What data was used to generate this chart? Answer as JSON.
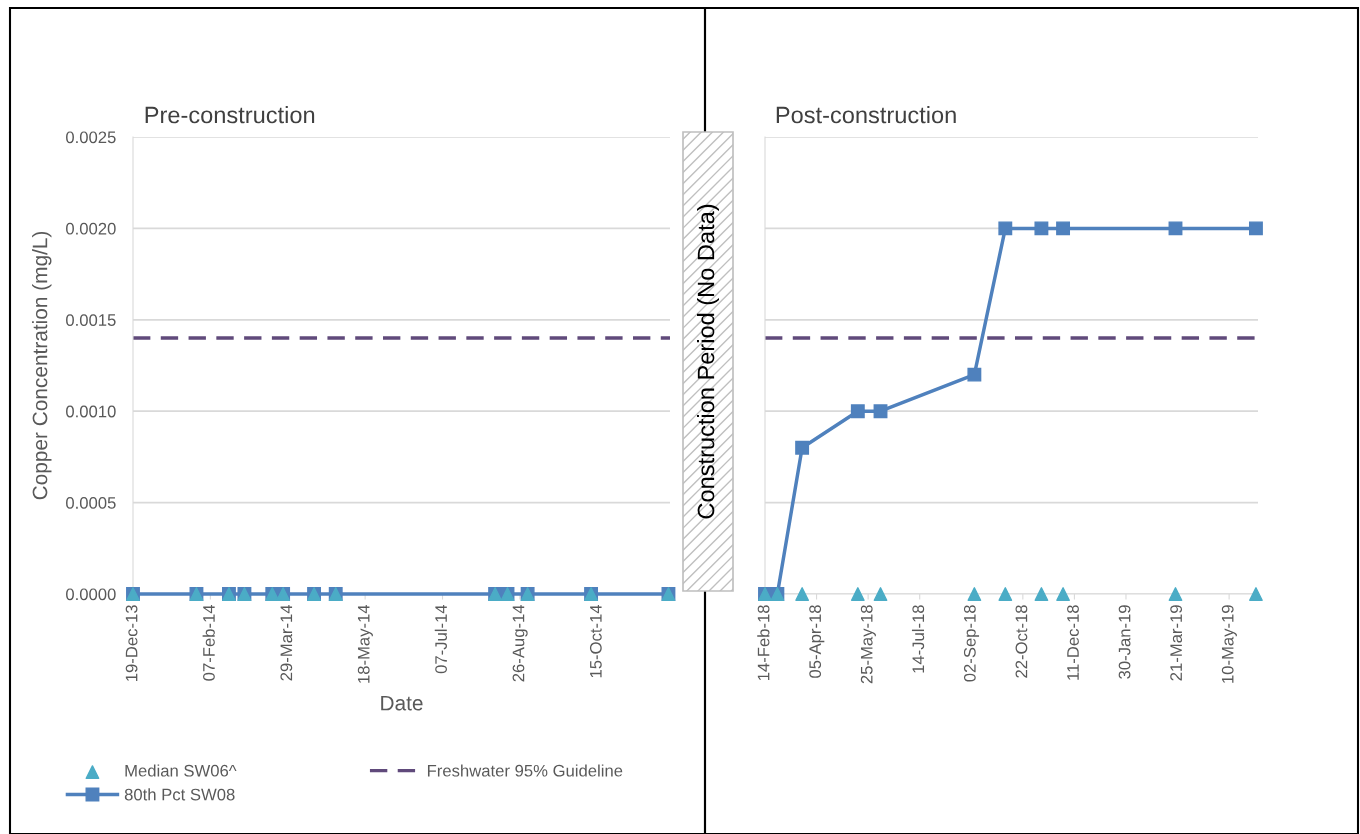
{
  "chart_data": [
    {
      "type": "line",
      "title": "Pre-construction",
      "xlabel": "Date",
      "ylabel": "Copper Concentration (mg/L)",
      "xlim": [
        "2013-12-19",
        "2014-12-01"
      ],
      "xticks": [
        {
          "value": "2013-12-19",
          "label": "19-Dec-13"
        },
        {
          "value": "2014-02-07",
          "label": "07-Feb-14"
        },
        {
          "value": "2014-03-29",
          "label": "29-Mar-14"
        },
        {
          "value": "2014-05-18",
          "label": "18-May-14"
        },
        {
          "value": "2014-07-07",
          "label": "07-Jul-14"
        },
        {
          "value": "2014-08-26",
          "label": "26-Aug-14"
        },
        {
          "value": "2014-10-15",
          "label": "15-Oct-14"
        }
      ],
      "ylim": [
        0,
        0.0025
      ],
      "yticks": [
        {
          "value": 0,
          "label": "0.0000"
        },
        {
          "value": 0.0005,
          "label": "0.0005"
        },
        {
          "value": 0.001,
          "label": "0.0010"
        },
        {
          "value": 0.0015,
          "label": "0.0015"
        },
        {
          "value": 0.002,
          "label": "0.0020"
        },
        {
          "value": 0.0025,
          "label": "0.0025"
        }
      ],
      "x": [
        "2013-12-19",
        "2014-01-29",
        "2014-02-19",
        "2014-03-01",
        "2014-03-19",
        "2014-03-26",
        "2014-04-15",
        "2014-04-29",
        "2014-08-10",
        "2014-08-18",
        "2014-08-31",
        "2014-10-11",
        "2014-11-30"
      ],
      "series": [
        {
          "name": "80th Pct SW08",
          "marker": "square",
          "color": "#4f81bd",
          "values": [
            0,
            0,
            0,
            0,
            0,
            0,
            0,
            0,
            0,
            0,
            0,
            0,
            0
          ]
        },
        {
          "name": "Median SW06^",
          "type": "scatter",
          "marker": "triangle",
          "color": "#4bacc6",
          "values": [
            0,
            0,
            0,
            0,
            0,
            0,
            0,
            0,
            0,
            0,
            0,
            0,
            0
          ]
        }
      ],
      "ref_lines": [
        {
          "axis": "y",
          "value": 0.0014,
          "label": "Freshwater 95% Guideline",
          "color": "#604a7b",
          "line_style": "dashed"
        }
      ],
      "annotations": [
        "Construction Period (No Data)"
      ],
      "grid": "y",
      "legend": "bottom"
    },
    {
      "type": "line",
      "title": "Post-construction",
      "xlim": [
        "2018-02-14",
        "2019-06-07"
      ],
      "xticks": [
        {
          "value": "2018-02-14",
          "label": "14-Feb-18"
        },
        {
          "value": "2018-04-05",
          "label": "05-Apr-18"
        },
        {
          "value": "2018-05-25",
          "label": "25-May-18"
        },
        {
          "value": "2018-07-14",
          "label": "14-Jul-18"
        },
        {
          "value": "2018-09-02",
          "label": "02-Sep-18"
        },
        {
          "value": "2018-10-22",
          "label": "22-Oct-18"
        },
        {
          "value": "2018-12-11",
          "label": "11-Dec-18"
        },
        {
          "value": "2019-01-30",
          "label": "30-Jan-19"
        },
        {
          "value": "2019-03-21",
          "label": "21-Mar-19"
        },
        {
          "value": "2019-05-10",
          "label": "10-May-19"
        }
      ],
      "ylim": [
        0,
        0.0025
      ],
      "yticks": [
        0,
        0.0005,
        0.001,
        0.0015,
        0.002,
        0.0025
      ],
      "tick_labels": "x",
      "x": [
        "2018-02-14",
        "2018-02-26",
        "2018-03-22",
        "2018-05-15",
        "2018-06-06",
        "2018-09-05",
        "2018-10-05",
        "2018-11-09",
        "2018-11-30",
        "2019-03-19",
        "2019-06-05"
      ],
      "series": [
        {
          "marker": "square",
          "color": "#4f81bd",
          "values": [
            0,
            0,
            0.0008,
            0.001,
            0.001,
            0.0012,
            0.002,
            0.002,
            0.002,
            0.002,
            0.002
          ]
        },
        {
          "type": "scatter",
          "marker": "triangle",
          "color": "#4bacc6",
          "values": [
            0,
            0,
            0,
            0,
            0,
            0,
            0,
            0,
            0,
            0,
            0
          ]
        }
      ],
      "ref_lines": [
        {
          "axis": "y",
          "value": 0.0014,
          "color": "#604a7b",
          "line_style": "dashed"
        }
      ],
      "grid": "y"
    }
  ]
}
